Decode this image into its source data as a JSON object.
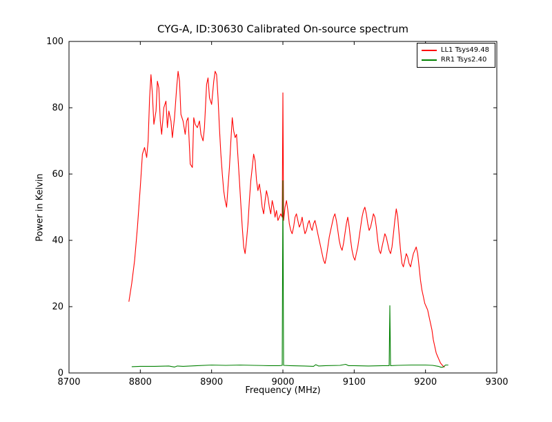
{
  "title": "CYG-A, ID:30630 Calibrated On-source spectrum",
  "chart_data": {
    "type": "line",
    "title": "CYG-A, ID:30630 Calibrated On-source spectrum",
    "xlabel": "Frequency (MHz)",
    "ylabel": "Power in Kelvin",
    "xlim": [
      8700,
      9300
    ],
    "ylim": [
      0,
      100
    ],
    "x_ticks": [
      8700,
      8800,
      8900,
      9000,
      9100,
      9200,
      9300
    ],
    "y_ticks": [
      0,
      20,
      40,
      60,
      80,
      100
    ],
    "grid": false,
    "legend_position": "upper right",
    "series": [
      {
        "name": "LL1 Tsys49.48",
        "color": "#ff0000",
        "points": [
          [
            8784,
            21.5
          ],
          [
            8788,
            27
          ],
          [
            8792,
            34
          ],
          [
            8796,
            44
          ],
          [
            8800,
            56
          ],
          [
            8803,
            66
          ],
          [
            8806,
            68
          ],
          [
            8809,
            65
          ],
          [
            8811,
            70
          ],
          [
            8813,
            83
          ],
          [
            8815,
            90
          ],
          [
            8817,
            84
          ],
          [
            8819,
            75
          ],
          [
            8822,
            79
          ],
          [
            8824,
            88
          ],
          [
            8826,
            86
          ],
          [
            8828,
            76
          ],
          [
            8830,
            72
          ],
          [
            8833,
            80
          ],
          [
            8836,
            82
          ],
          [
            8838,
            74
          ],
          [
            8840,
            79
          ],
          [
            8843,
            76
          ],
          [
            8845,
            71
          ],
          [
            8848,
            77
          ],
          [
            8851,
            86
          ],
          [
            8853,
            91
          ],
          [
            8855,
            88
          ],
          [
            8857,
            78
          ],
          [
            8860,
            76
          ],
          [
            8863,
            72
          ],
          [
            8865,
            76
          ],
          [
            8867,
            77
          ],
          [
            8870,
            63
          ],
          [
            8873,
            62
          ],
          [
            8875,
            77
          ],
          [
            8877,
            75
          ],
          [
            8880,
            74
          ],
          [
            8883,
            76
          ],
          [
            8885,
            72
          ],
          [
            8888,
            70
          ],
          [
            8890,
            74
          ],
          [
            8893,
            87
          ],
          [
            8895,
            89
          ],
          [
            8897,
            83
          ],
          [
            8900,
            81
          ],
          [
            8903,
            88
          ],
          [
            8905,
            91
          ],
          [
            8907,
            90
          ],
          [
            8909,
            83
          ],
          [
            8911,
            74
          ],
          [
            8913,
            66
          ],
          [
            8915,
            60
          ],
          [
            8917,
            55
          ],
          [
            8919,
            52
          ],
          [
            8921,
            50
          ],
          [
            8923,
            56
          ],
          [
            8925,
            62
          ],
          [
            8927,
            70
          ],
          [
            8929,
            77
          ],
          [
            8931,
            73
          ],
          [
            8933,
            71
          ],
          [
            8935,
            72
          ],
          [
            8937,
            65
          ],
          [
            8939,
            58
          ],
          [
            8941,
            51
          ],
          [
            8943,
            44
          ],
          [
            8945,
            38
          ],
          [
            8947,
            36
          ],
          [
            8949,
            40
          ],
          [
            8951,
            45
          ],
          [
            8953,
            52
          ],
          [
            8955,
            58
          ],
          [
            8957,
            62
          ],
          [
            8959,
            66
          ],
          [
            8961,
            64
          ],
          [
            8963,
            58
          ],
          [
            8965,
            55
          ],
          [
            8967,
            57
          ],
          [
            8969,
            54
          ],
          [
            8971,
            50
          ],
          [
            8973,
            48
          ],
          [
            8975,
            52
          ],
          [
            8977,
            55
          ],
          [
            8979,
            53
          ],
          [
            8981,
            50
          ],
          [
            8983,
            48
          ],
          [
            8985,
            52
          ],
          [
            8987,
            50
          ],
          [
            8989,
            47
          ],
          [
            8991,
            49
          ],
          [
            8993,
            46
          ],
          [
            8995,
            47
          ],
          [
            8997,
            48
          ],
          [
            8999,
            47
          ],
          [
            9000,
            84.5
          ],
          [
            9001,
            46
          ],
          [
            9003,
            50
          ],
          [
            9005,
            52
          ],
          [
            9007,
            49
          ],
          [
            9009,
            45
          ],
          [
            9011,
            43
          ],
          [
            9013,
            42
          ],
          [
            9015,
            44
          ],
          [
            9017,
            47
          ],
          [
            9019,
            48
          ],
          [
            9021,
            46
          ],
          [
            9023,
            44
          ],
          [
            9025,
            45
          ],
          [
            9027,
            47
          ],
          [
            9029,
            44
          ],
          [
            9031,
            42
          ],
          [
            9033,
            43
          ],
          [
            9035,
            45
          ],
          [
            9037,
            46
          ],
          [
            9039,
            44
          ],
          [
            9041,
            43
          ],
          [
            9043,
            45
          ],
          [
            9045,
            46
          ],
          [
            9047,
            44
          ],
          [
            9049,
            42
          ],
          [
            9051,
            40
          ],
          [
            9053,
            38
          ],
          [
            9055,
            36
          ],
          [
            9057,
            34
          ],
          [
            9059,
            33
          ],
          [
            9061,
            35
          ],
          [
            9063,
            38
          ],
          [
            9065,
            41
          ],
          [
            9067,
            43
          ],
          [
            9069,
            45
          ],
          [
            9071,
            47
          ],
          [
            9073,
            48
          ],
          [
            9075,
            46
          ],
          [
            9077,
            43
          ],
          [
            9079,
            40
          ],
          [
            9081,
            38
          ],
          [
            9083,
            37
          ],
          [
            9085,
            39
          ],
          [
            9087,
            42
          ],
          [
            9089,
            45
          ],
          [
            9091,
            47
          ],
          [
            9093,
            44
          ],
          [
            9095,
            40
          ],
          [
            9097,
            37
          ],
          [
            9099,
            35
          ],
          [
            9101,
            34
          ],
          [
            9103,
            36
          ],
          [
            9105,
            38
          ],
          [
            9107,
            41
          ],
          [
            9109,
            44
          ],
          [
            9111,
            47
          ],
          [
            9113,
            49
          ],
          [
            9115,
            50
          ],
          [
            9117,
            48
          ],
          [
            9119,
            45
          ],
          [
            9121,
            43
          ],
          [
            9123,
            44
          ],
          [
            9125,
            46
          ],
          [
            9127,
            48
          ],
          [
            9129,
            47
          ],
          [
            9131,
            44
          ],
          [
            9133,
            40
          ],
          [
            9135,
            37
          ],
          [
            9137,
            36
          ],
          [
            9139,
            38
          ],
          [
            9141,
            40
          ],
          [
            9143,
            42
          ],
          [
            9145,
            41
          ],
          [
            9147,
            39
          ],
          [
            9149,
            37
          ],
          [
            9151,
            36
          ],
          [
            9153,
            38
          ],
          [
            9155,
            42
          ],
          [
            9157,
            46
          ],
          [
            9159,
            49.5
          ],
          [
            9161,
            47
          ],
          [
            9163,
            42
          ],
          [
            9165,
            37
          ],
          [
            9167,
            33
          ],
          [
            9169,
            32
          ],
          [
            9171,
            34
          ],
          [
            9173,
            36
          ],
          [
            9175,
            35
          ],
          [
            9177,
            33
          ],
          [
            9179,
            32
          ],
          [
            9181,
            34
          ],
          [
            9183,
            36
          ],
          [
            9185,
            37
          ],
          [
            9187,
            38
          ],
          [
            9189,
            36
          ],
          [
            9191,
            32
          ],
          [
            9193,
            28
          ],
          [
            9195,
            25
          ],
          [
            9197,
            23
          ],
          [
            9199,
            21
          ],
          [
            9201,
            20
          ],
          [
            9203,
            19
          ],
          [
            9205,
            17
          ],
          [
            9207,
            15
          ],
          [
            9209,
            13
          ],
          [
            9211,
            10
          ],
          [
            9213,
            8
          ],
          [
            9215,
            6
          ],
          [
            9217,
            5
          ],
          [
            9219,
            4
          ],
          [
            9221,
            3
          ],
          [
            9223,
            2.5
          ],
          [
            9225,
            2
          ],
          [
            9227,
            1.8
          ]
        ]
      },
      {
        "name": "RR1 Tsys2.40",
        "color": "#008000",
        "points": [
          [
            8788,
            1.9
          ],
          [
            8800,
            2.0
          ],
          [
            8820,
            2.0
          ],
          [
            8840,
            2.1
          ],
          [
            8848,
            1.8
          ],
          [
            8852,
            2.1
          ],
          [
            8860,
            2.0
          ],
          [
            8880,
            2.2
          ],
          [
            8900,
            2.4
          ],
          [
            8920,
            2.3
          ],
          [
            8940,
            2.4
          ],
          [
            8960,
            2.3
          ],
          [
            8980,
            2.2
          ],
          [
            8995,
            2.2
          ],
          [
            8999,
            2.3
          ],
          [
            9000,
            58
          ],
          [
            9001,
            2.3
          ],
          [
            9010,
            2.2
          ],
          [
            9030,
            2.1
          ],
          [
            9043,
            2.0
          ],
          [
            9046,
            2.5
          ],
          [
            9050,
            2.1
          ],
          [
            9060,
            2.2
          ],
          [
            9080,
            2.3
          ],
          [
            9088,
            2.6
          ],
          [
            9092,
            2.2
          ],
          [
            9100,
            2.2
          ],
          [
            9120,
            2.1
          ],
          [
            9140,
            2.2
          ],
          [
            9149,
            2.2
          ],
          [
            9150,
            20.3
          ],
          [
            9151,
            2.2
          ],
          [
            9160,
            2.3
          ],
          [
            9180,
            2.4
          ],
          [
            9200,
            2.4
          ],
          [
            9210,
            2.3
          ],
          [
            9218,
            2.0
          ],
          [
            9222,
            1.7
          ],
          [
            9225,
            1.8
          ],
          [
            9228,
            2.4
          ],
          [
            9232,
            2.4
          ]
        ]
      }
    ]
  }
}
